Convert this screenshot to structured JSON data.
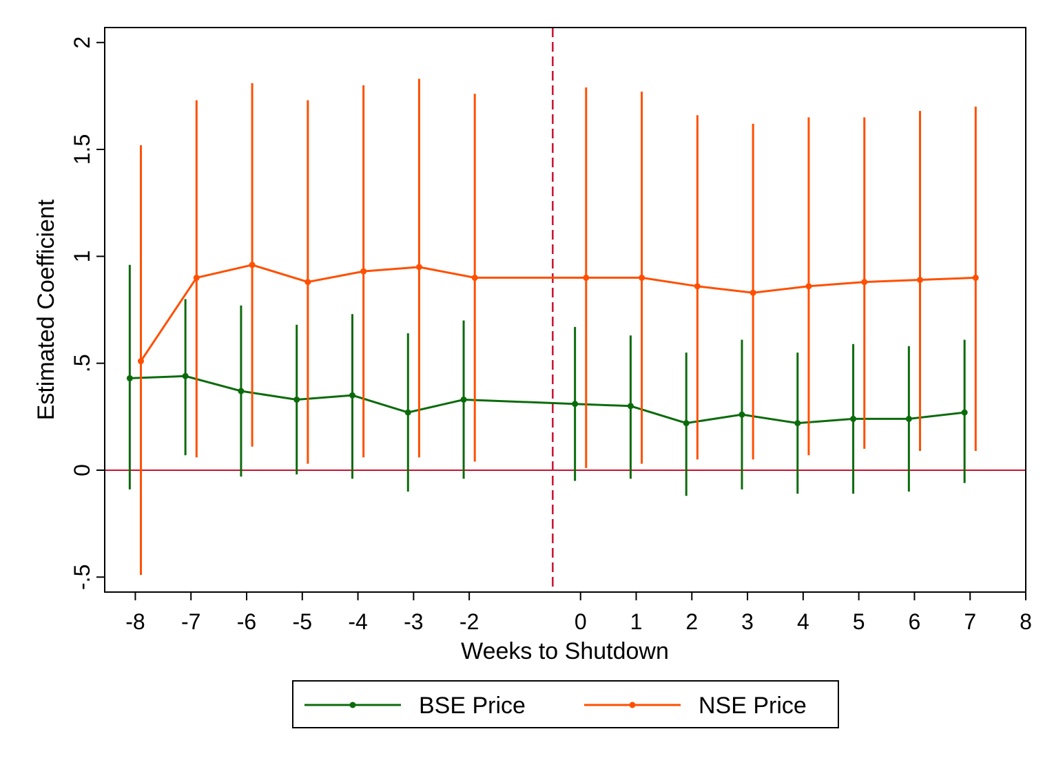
{
  "chart_data": {
    "type": "line",
    "xlabel": "Weeks to Shutdown",
    "ylabel": "Estimated Coefficient",
    "xlim": [
      -8.55,
      8
    ],
    "ylim": [
      -0.57,
      2.07
    ],
    "x_ticks": [
      -8,
      -7,
      -6,
      -5,
      -4,
      -3,
      -2,
      0,
      1,
      2,
      3,
      4,
      5,
      6,
      7,
      8
    ],
    "x_tick_labels": [
      "-8",
      "-7",
      "-6",
      "-5",
      "-4",
      "-3",
      "-2",
      "0",
      "1",
      "2",
      "3",
      "4",
      "5",
      "6",
      "7",
      "8"
    ],
    "y_ticks": [
      -0.5,
      0,
      0.5,
      1,
      1.5,
      2
    ],
    "y_tick_labels": [
      "-.5",
      "0",
      ".5",
      "1",
      "1.5",
      "2"
    ],
    "reference_lines": {
      "horizontal_y": 0,
      "horizontal_color": "#c8102e",
      "vertical_x": -0.5,
      "vertical_color": "#c8102e",
      "vertical_style": "dashed"
    },
    "legend_position": "bottom",
    "series": [
      {
        "name": "BSE Price",
        "color": "#0b6b0b",
        "x": [
          -8.1,
          -7.1,
          -6.1,
          -5.1,
          -4.1,
          -3.1,
          -2.1,
          -0.1,
          0.9,
          1.9,
          2.9,
          3.9,
          4.9,
          5.9,
          6.9
        ],
        "values": [
          0.43,
          0.44,
          0.37,
          0.33,
          0.35,
          0.27,
          0.33,
          0.31,
          0.3,
          0.22,
          0.26,
          0.22,
          0.24,
          0.24,
          0.27
        ],
        "lower": [
          -0.09,
          0.07,
          -0.03,
          -0.02,
          -0.04,
          -0.1,
          -0.04,
          -0.05,
          -0.04,
          -0.12,
          -0.09,
          -0.11,
          -0.11,
          -0.1,
          -0.06
        ],
        "upper": [
          0.96,
          0.8,
          0.77,
          0.68,
          0.73,
          0.64,
          0.7,
          0.67,
          0.63,
          0.55,
          0.61,
          0.55,
          0.59,
          0.58,
          0.61
        ]
      },
      {
        "name": "NSE Price",
        "color": "#ff4f00",
        "x": [
          -7.9,
          -6.9,
          -5.9,
          -4.9,
          -3.9,
          -2.9,
          -1.9,
          0.1,
          1.1,
          2.1,
          3.1,
          4.1,
          5.1,
          6.1,
          7.1
        ],
        "values": [
          0.51,
          0.9,
          0.96,
          0.88,
          0.93,
          0.95,
          0.9,
          0.9,
          0.9,
          0.86,
          0.83,
          0.86,
          0.88,
          0.89,
          0.9
        ],
        "lower": [
          -0.49,
          0.06,
          0.11,
          0.03,
          0.06,
          0.06,
          0.04,
          0.01,
          0.03,
          0.05,
          0.05,
          0.07,
          0.1,
          0.09,
          0.09
        ],
        "upper": [
          1.52,
          1.73,
          1.81,
          1.73,
          1.8,
          1.83,
          1.76,
          1.79,
          1.77,
          1.66,
          1.62,
          1.65,
          1.65,
          1.68,
          1.7
        ]
      }
    ]
  }
}
